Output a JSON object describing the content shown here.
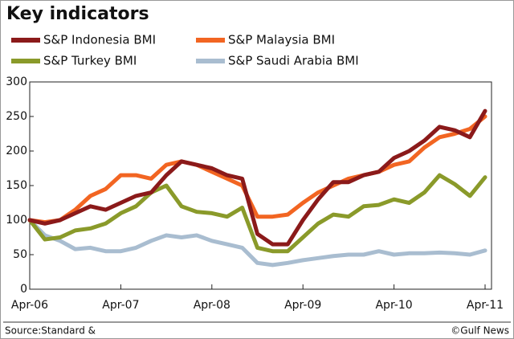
{
  "chart_data": {
    "type": "line",
    "title": "Key indicators",
    "categories": [
      "Apr-06",
      null,
      null,
      null,
      null,
      null,
      "Apr-07",
      null,
      null,
      null,
      null,
      null,
      "Apr-08",
      null,
      null,
      null,
      null,
      null,
      "Apr-09",
      null,
      null,
      null,
      null,
      null,
      "Apr-10",
      null,
      null,
      null,
      null,
      null,
      "Apr-11"
    ],
    "series": [
      {
        "name": "S&P Indonesia BMI",
        "color": "#8b1a1a",
        "values": [
          100,
          95,
          100,
          110,
          120,
          115,
          125,
          135,
          140,
          165,
          185,
          180,
          175,
          165,
          160,
          80,
          65,
          65,
          100,
          130,
          155,
          155,
          165,
          170,
          190,
          200,
          215,
          235,
          230,
          220,
          258
        ]
      },
      {
        "name": "S&P Malaysia BMI",
        "color": "#f26522",
        "values": [
          100,
          97,
          100,
          115,
          135,
          145,
          165,
          165,
          160,
          180,
          185,
          180,
          170,
          160,
          150,
          105,
          105,
          108,
          125,
          140,
          150,
          160,
          165,
          170,
          180,
          185,
          205,
          220,
          225,
          232,
          250
        ]
      },
      {
        "name": "S&P Turkey BMI",
        "color": "#8a9a2a",
        "values": [
          100,
          72,
          75,
          85,
          88,
          95,
          110,
          120,
          140,
          150,
          120,
          112,
          110,
          105,
          118,
          60,
          55,
          55,
          75,
          95,
          108,
          105,
          120,
          122,
          130,
          125,
          140,
          165,
          152,
          135,
          162
        ]
      },
      {
        "name": "S&P Saudi Arabia BMI",
        "color": "#a9bdd0",
        "values": [
          100,
          78,
          70,
          58,
          60,
          55,
          55,
          60,
          70,
          78,
          75,
          78,
          70,
          65,
          60,
          38,
          35,
          38,
          42,
          45,
          48,
          50,
          50,
          55,
          50,
          52,
          52,
          53,
          52,
          50,
          56
        ]
      }
    ],
    "ylim": [
      0,
      300
    ],
    "yticks": [
      0,
      50,
      100,
      150,
      200,
      250,
      300
    ],
    "source": "Source:Standard &",
    "credit": "©Gulf News"
  }
}
